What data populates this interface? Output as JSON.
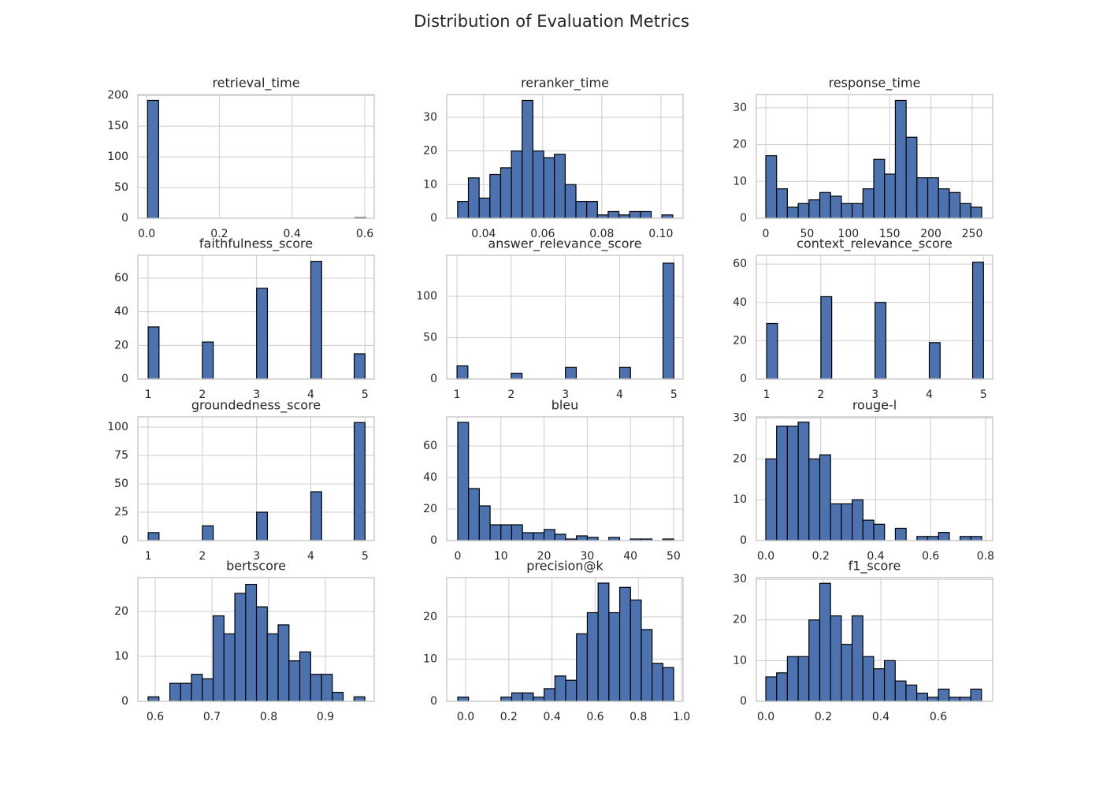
{
  "title": "Distribution of Evaluation Metrics",
  "chart_data": [
    {
      "type": "histogram",
      "title": "retrieval_time",
      "color": "#4c72b0",
      "grid": true,
      "bins": [
        0.003,
        0.033,
        0.063,
        0.093,
        0.123,
        0.153,
        0.183,
        0.213,
        0.243,
        0.273,
        0.303,
        0.333,
        0.363,
        0.393,
        0.423,
        0.453,
        0.483,
        0.513,
        0.543,
        0.573,
        0.603
      ],
      "values": [
        192,
        0,
        0,
        0,
        0,
        0,
        0,
        0,
        0,
        0,
        0,
        0,
        0,
        0,
        0,
        0,
        0,
        0,
        0,
        1
      ],
      "xlim": [
        -0.024,
        0.626
      ],
      "ylim": [
        0,
        201.6
      ],
      "xticks": [
        {
          "value": 0,
          "label": "0.0"
        },
        0.2,
        0.4,
        0.6
      ],
      "yticks": [
        0,
        50,
        100,
        150,
        200
      ]
    },
    {
      "type": "histogram",
      "title": "reranker_time",
      "color": "#4c72b0",
      "grid": true,
      "bins": [
        0.0312,
        0.03484,
        0.03848,
        0.04212,
        0.04576,
        0.0494,
        0.05304,
        0.05668,
        0.06032,
        0.06396,
        0.0676,
        0.07124,
        0.07488,
        0.07852,
        0.08216,
        0.0858,
        0.08944,
        0.09308,
        0.09672,
        0.10036,
        0.104
      ],
      "values": [
        5,
        12,
        6,
        13,
        15,
        20,
        35,
        20,
        18,
        19,
        10,
        5,
        5,
        1,
        2,
        1,
        2,
        2,
        0,
        1
      ],
      "xlim": [
        0.0275,
        0.1075
      ],
      "ylim": [
        0,
        36.75
      ],
      "xticks": [
        0.04,
        0.06,
        0.08,
        {
          "value": 0.1,
          "label": "0.10"
        }
      ],
      "yticks": [
        0,
        10,
        20,
        30
      ]
    },
    {
      "type": "histogram",
      "title": "response_time",
      "color": "#4c72b0",
      "grid": true,
      "bins": [
        0,
        13.075,
        26.15,
        39.225,
        52.3,
        65.375,
        78.45,
        91.525,
        104.6,
        117.675,
        130.75,
        143.825,
        156.9,
        169.975,
        183.05,
        196.125,
        209.2,
        222.275,
        235.35,
        248.425,
        261.5
      ],
      "values": [
        17,
        8,
        3,
        4,
        5,
        7,
        6,
        4,
        4,
        8,
        16,
        12,
        32,
        22,
        11,
        11,
        8,
        7,
        4,
        3
      ],
      "xlim": [
        -11.45,
        274.8
      ],
      "ylim": [
        0,
        33.6
      ],
      "xticks": [
        0,
        50,
        100,
        150,
        200,
        250
      ],
      "yticks": [
        0,
        10,
        20,
        30
      ]
    },
    {
      "type": "histogram",
      "title": "faithfulness_score",
      "color": "#4c72b0",
      "grid": true,
      "bins": [
        1,
        1.2,
        1.4,
        1.6,
        1.8,
        2,
        2.2,
        2.4,
        2.6,
        2.8,
        3,
        3.2,
        3.4,
        3.6,
        3.8,
        4,
        4.2,
        4.4,
        4.6,
        4.8,
        5
      ],
      "values": [
        31,
        0,
        0,
        0,
        0,
        22,
        0,
        0,
        0,
        0,
        54,
        0,
        0,
        0,
        0,
        70,
        0,
        0,
        0,
        15
      ],
      "xlim": [
        0.81,
        5.17
      ],
      "ylim": [
        0,
        73.6
      ],
      "xticks": [
        1,
        2,
        3,
        4,
        5
      ],
      "yticks": [
        0,
        20,
        40,
        60
      ]
    },
    {
      "type": "histogram",
      "title": "answer_relevance_score",
      "color": "#4c72b0",
      "grid": true,
      "bins": [
        1,
        1.2,
        1.4,
        1.6,
        1.8,
        2,
        2.2,
        2.4,
        2.6,
        2.8,
        3,
        3.2,
        3.4,
        3.6,
        3.8,
        4,
        4.2,
        4.4,
        4.6,
        4.8,
        5
      ],
      "values": [
        16,
        0,
        0,
        0,
        0,
        7,
        0,
        0,
        0,
        0,
        14,
        0,
        0,
        0,
        0,
        14,
        0,
        0,
        0,
        140
      ],
      "xlim": [
        0.81,
        5.17
      ],
      "ylim": [
        0,
        149.5
      ],
      "xticks": [
        1,
        2,
        3,
        4,
        5
      ],
      "yticks": [
        0,
        50,
        100
      ]
    },
    {
      "type": "histogram",
      "title": "context_relevance_score",
      "color": "#4c72b0",
      "grid": true,
      "bins": [
        1,
        1.2,
        1.4,
        1.6,
        1.8,
        2,
        2.2,
        2.4,
        2.6,
        2.8,
        3,
        3.2,
        3.4,
        3.6,
        3.8,
        4,
        4.2,
        4.4,
        4.6,
        4.8,
        5
      ],
      "values": [
        29,
        0,
        0,
        0,
        0,
        43,
        0,
        0,
        0,
        0,
        40,
        0,
        0,
        0,
        0,
        19,
        0,
        0,
        0,
        61
      ],
      "xlim": [
        0.81,
        5.17
      ],
      "ylim": [
        0,
        64.6
      ],
      "xticks": [
        1,
        2,
        3,
        4,
        5
      ],
      "yticks": [
        0,
        20,
        40,
        60
      ]
    },
    {
      "type": "histogram",
      "title": "groundedness_score",
      "color": "#4c72b0",
      "grid": true,
      "bins": [
        1,
        1.2,
        1.4,
        1.6,
        1.8,
        2,
        2.2,
        2.4,
        2.6,
        2.8,
        3,
        3.2,
        3.4,
        3.6,
        3.8,
        4,
        4.2,
        4.4,
        4.6,
        4.8,
        5
      ],
      "values": [
        7,
        0,
        0,
        0,
        0,
        13,
        0,
        0,
        0,
        0,
        25,
        0,
        0,
        0,
        0,
        43,
        0,
        0,
        0,
        104
      ],
      "xlim": [
        0.81,
        5.17
      ],
      "ylim": [
        0,
        109
      ],
      "xticks": [
        1,
        2,
        3,
        4,
        5
      ],
      "yticks": [
        0,
        25,
        50,
        75,
        100
      ]
    },
    {
      "type": "histogram",
      "title": "bleu",
      "color": "#4c72b0",
      "grid": true,
      "bins": [
        0,
        2.5,
        5,
        7.5,
        10,
        12.5,
        15,
        17.5,
        20,
        22.5,
        25,
        27.5,
        30,
        32.5,
        35,
        37.5,
        40,
        42.5,
        45,
        47.5,
        50
      ],
      "values": [
        75,
        33,
        22,
        10,
        10,
        10,
        5,
        5,
        7,
        4,
        1,
        3,
        2,
        0,
        2,
        0,
        1,
        1,
        0,
        1
      ],
      "xlim": [
        -2.55,
        52.2
      ],
      "ylim": [
        0,
        78.5
      ],
      "xticks": [
        0,
        10,
        20,
        30,
        40,
        50
      ],
      "yticks": [
        0,
        20,
        40,
        60
      ]
    },
    {
      "type": "histogram",
      "title": "rouge-l",
      "color": "#4c72b0",
      "grid": true,
      "bins": [
        0,
        0.0393,
        0.0786,
        0.1179,
        0.1572,
        0.1965,
        0.2358,
        0.2751,
        0.3144,
        0.3537,
        0.393,
        0.4323,
        0.4716,
        0.5109,
        0.5502,
        0.5895,
        0.6288,
        0.6681,
        0.7074,
        0.7467,
        0.786
      ],
      "values": [
        20,
        28,
        28,
        29,
        20,
        21,
        9,
        9,
        10,
        5,
        4,
        0,
        3,
        0,
        1,
        1,
        2,
        0,
        1,
        1
      ],
      "xlim": [
        -0.0344,
        0.826
      ],
      "ylim": [
        0,
        30.3
      ],
      "xticks": [
        {
          "value": 0,
          "label": "0.0"
        },
        0.2,
        0.4,
        0.6,
        0.8
      ],
      "yticks": [
        0,
        10,
        20,
        30
      ]
    },
    {
      "type": "histogram",
      "title": "bertscore",
      "color": "#4c72b0",
      "grid": true,
      "bins": [
        0.5875,
        0.6066,
        0.6257,
        0.6448,
        0.6639,
        0.683,
        0.7021,
        0.7212,
        0.7403,
        0.7594,
        0.7785,
        0.7976,
        0.8167,
        0.8358,
        0.8549,
        0.874,
        0.8931,
        0.9122,
        0.9313,
        0.9504,
        0.9695
      ],
      "values": [
        1,
        0,
        4,
        4,
        6,
        5,
        19,
        15,
        24,
        26,
        21,
        15,
        17,
        9,
        11,
        6,
        6,
        2,
        0,
        1
      ],
      "xlim": [
        0.5694,
        0.9861
      ],
      "ylim": [
        0,
        27.5
      ],
      "xticks": [
        0.6,
        0.7,
        0.8,
        0.9
      ],
      "yticks": [
        0,
        10,
        20
      ]
    },
    {
      "type": "histogram",
      "title": "precision@k",
      "color": "#4c72b0",
      "grid": true,
      "bins": [
        -0.0365,
        0.0135,
        0.0635,
        0.1135,
        0.1635,
        0.2135,
        0.2635,
        0.3135,
        0.3635,
        0.4135,
        0.4635,
        0.5135,
        0.5635,
        0.6135,
        0.6635,
        0.7135,
        0.7635,
        0.8135,
        0.8635,
        0.9135,
        0.9635
      ],
      "values": [
        1,
        0,
        0,
        0,
        1,
        2,
        2,
        1,
        3,
        6,
        5,
        16,
        21,
        28,
        21,
        27,
        24,
        17,
        9,
        8
      ],
      "xlim": [
        -0.0876,
        1.007
      ],
      "ylim": [
        0,
        29.3
      ],
      "xticks": [
        {
          "value": 0,
          "label": "0.0"
        },
        0.2,
        0.4,
        0.6,
        0.8,
        {
          "value": 1,
          "label": "1.0"
        }
      ],
      "yticks": [
        0,
        10,
        20
      ]
    },
    {
      "type": "histogram",
      "title": "f1_score",
      "color": "#4c72b0",
      "grid": true,
      "bins": [
        0,
        0.0375,
        0.075,
        0.1125,
        0.15,
        0.1875,
        0.225,
        0.2625,
        0.3,
        0.3375,
        0.375,
        0.4125,
        0.45,
        0.4875,
        0.525,
        0.5625,
        0.6,
        0.6375,
        0.675,
        0.7125,
        0.75
      ],
      "values": [
        6,
        7,
        11,
        11,
        20,
        29,
        21,
        14,
        21,
        11,
        8,
        10,
        5,
        4,
        2,
        1,
        3,
        1,
        1,
        3
      ],
      "xlim": [
        -0.0329,
        0.789
      ],
      "ylim": [
        0,
        30.4
      ],
      "xticks": [
        {
          "value": 0,
          "label": "0.0"
        },
        0.2,
        0.4,
        0.6
      ],
      "yticks": [
        0,
        10,
        20,
        30
      ]
    }
  ]
}
